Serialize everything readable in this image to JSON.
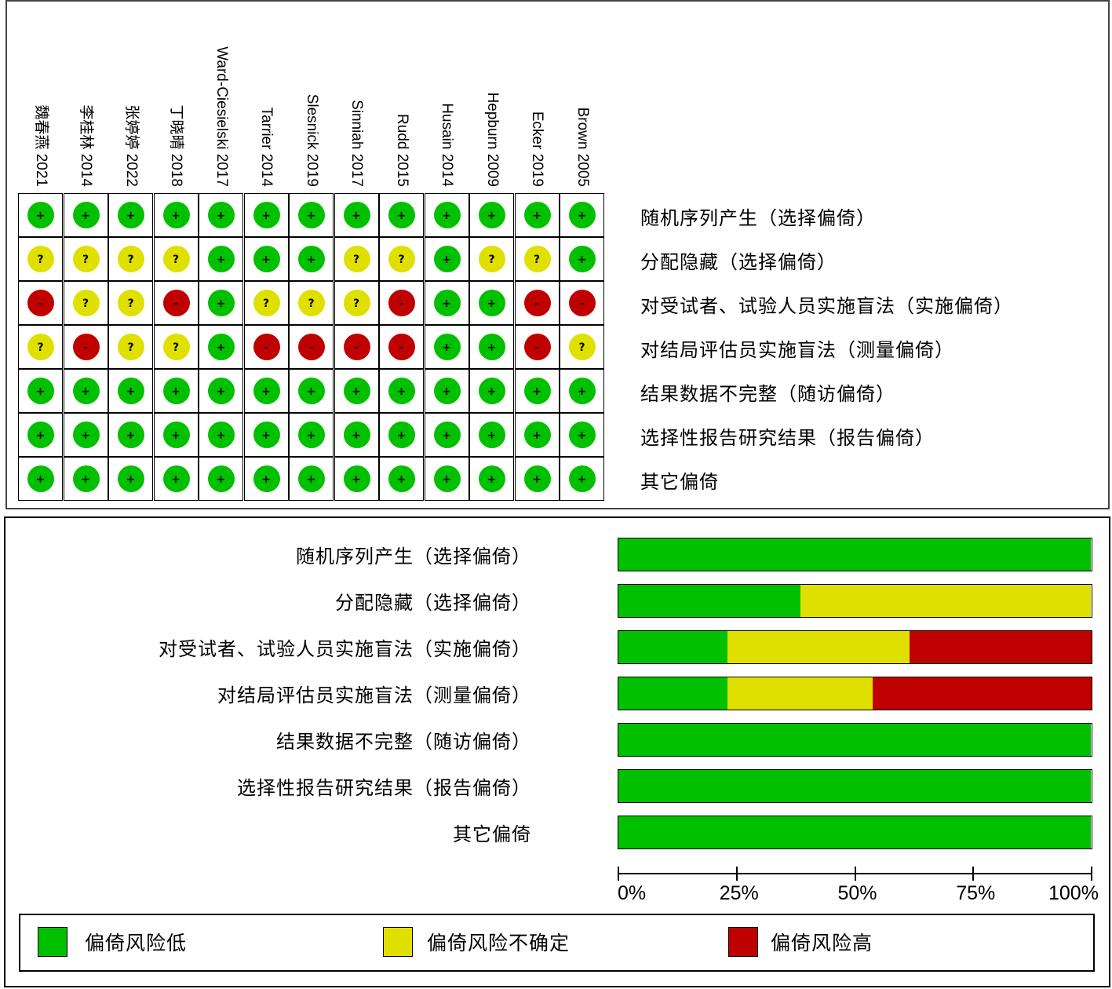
{
  "colors": {
    "low": "#00C000",
    "unclear": "#E0E000",
    "high": "#C00000"
  },
  "symbols": {
    "low": "+",
    "unclear": "?",
    "high": "-"
  },
  "studies": [
    "魏春燕 2021",
    "李桂林 2014",
    "张婷婷 2022",
    "丁晓晴 2018",
    "Ward-Ciesielski 2017",
    "Tarrier 2014",
    "Slesnick 2019",
    "Sinniah 2017",
    "Rudd 2015",
    "Husain 2014",
    "Hepburn 2009",
    "Ecker 2019",
    "Brown 2005"
  ],
  "domains": [
    "随机序列产生（选择偏倚）",
    "分配隐藏（选择偏倚）",
    "对受试者、试验人员实施盲法（实施偏倚）",
    "对结局评估员实施盲法（测量偏倚）",
    "结果数据不完整（随访偏倚）",
    "选择性报告研究结果（报告偏倚）",
    "其它偏倚"
  ],
  "judgements": [
    [
      "low",
      "low",
      "low",
      "low",
      "low",
      "low",
      "low",
      "low",
      "low",
      "low",
      "low",
      "low",
      "low"
    ],
    [
      "unclear",
      "unclear",
      "unclear",
      "unclear",
      "low",
      "low",
      "low",
      "unclear",
      "unclear",
      "low",
      "unclear",
      "unclear",
      "low"
    ],
    [
      "high",
      "unclear",
      "unclear",
      "high",
      "low",
      "unclear",
      "unclear",
      "unclear",
      "high",
      "low",
      "low",
      "high",
      "high"
    ],
    [
      "unclear",
      "high",
      "unclear",
      "unclear",
      "low",
      "high",
      "high",
      "high",
      "high",
      "low",
      "low",
      "high",
      "unclear"
    ],
    [
      "low",
      "low",
      "low",
      "low",
      "low",
      "low",
      "low",
      "low",
      "low",
      "low",
      "low",
      "low",
      "low"
    ],
    [
      "low",
      "low",
      "low",
      "low",
      "low",
      "low",
      "low",
      "low",
      "low",
      "low",
      "low",
      "low",
      "low"
    ],
    [
      "low",
      "low",
      "low",
      "low",
      "low",
      "low",
      "low",
      "low",
      "low",
      "low",
      "low",
      "low",
      "low"
    ]
  ],
  "chart_data": {
    "type": "bar",
    "orientation": "horizontal-stacked",
    "categories": [
      "随机序列产生（选择偏倚）",
      "分配隐藏（选择偏倚）",
      "对受试者、试验人员实施盲法（实施偏倚）",
      "对结局评估员实施盲法（测量偏倚）",
      "结果数据不完整（随访偏倚）",
      "选择性报告研究结果（报告偏倚）",
      "其它偏倚"
    ],
    "series": [
      {
        "name": "偏倚风险低",
        "color": "#00C000",
        "values": [
          100,
          38.5,
          23.1,
          23.1,
          100,
          100,
          100
        ]
      },
      {
        "name": "偏倚风险不确定",
        "color": "#E0E000",
        "values": [
          0,
          61.5,
          38.5,
          30.8,
          0,
          0,
          0
        ]
      },
      {
        "name": "偏倚风险高",
        "color": "#C00000",
        "values": [
          0,
          0,
          38.5,
          46.2,
          0,
          0,
          0
        ]
      }
    ],
    "xticks": [
      "0%",
      "25%",
      "50%",
      "75%",
      "100%"
    ],
    "xlim": [
      0,
      100
    ],
    "legend_position": "bottom"
  },
  "legend": [
    "偏倚风险低",
    "偏倚风险不确定",
    "偏倚风险高"
  ]
}
